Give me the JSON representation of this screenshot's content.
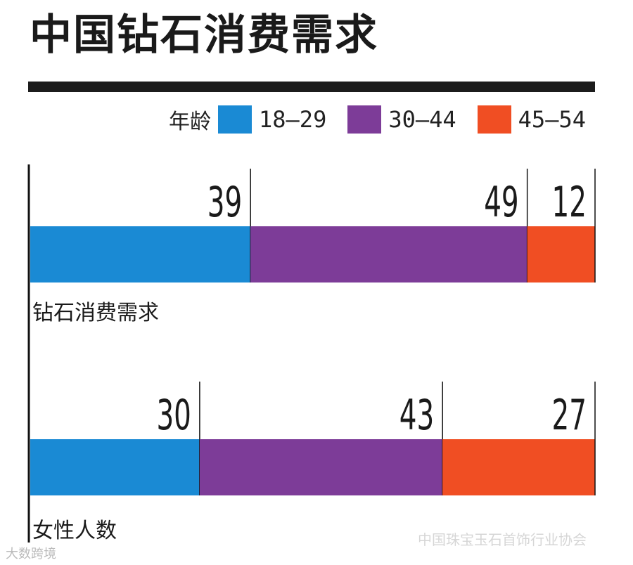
{
  "title": "中国钻石消费需求",
  "legend": {
    "title": "年龄",
    "items": [
      {
        "label": "18–29",
        "color": "#1a8ad4"
      },
      {
        "label": "30–44",
        "color": "#7d3c98"
      },
      {
        "label": "45–54",
        "color": "#f04e23"
      }
    ]
  },
  "chart_data": {
    "type": "bar",
    "orientation": "horizontal-stacked",
    "categories": [
      "钻石消费需求",
      "女性人数"
    ],
    "series": [
      {
        "name": "18–29",
        "values": [
          39,
          30
        ]
      },
      {
        "name": "30–44",
        "values": [
          49,
          43
        ]
      },
      {
        "name": "45–54",
        "values": [
          12,
          27
        ]
      }
    ],
    "xlim": [
      0,
      100
    ],
    "grid": false,
    "legend_position": "top-right"
  },
  "watermarks": {
    "left": "大数跨境",
    "right": "中国珠宝玉石首饰行业协会"
  }
}
